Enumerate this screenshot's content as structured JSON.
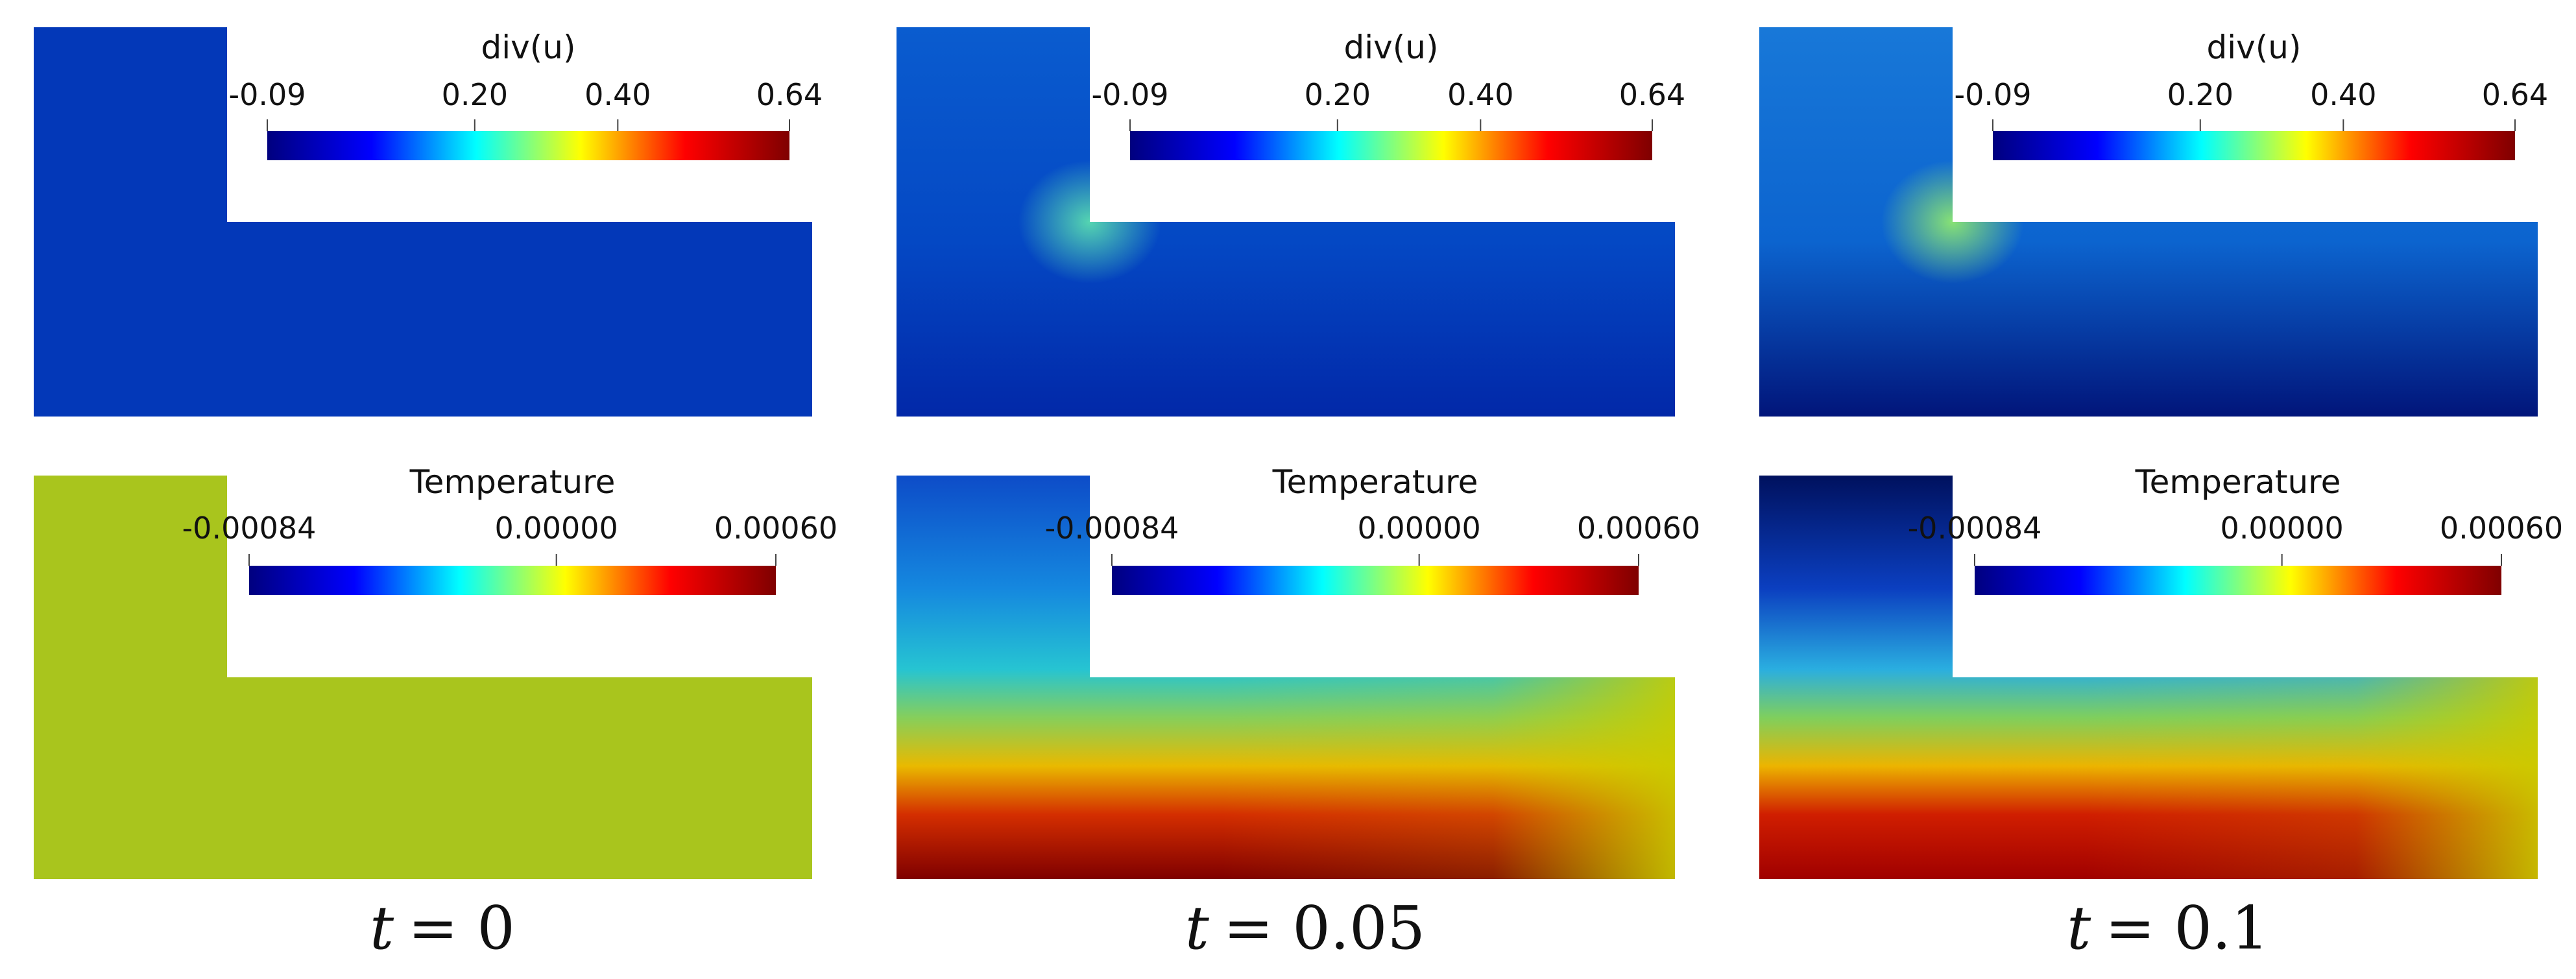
{
  "figure": {
    "colormap": [
      "#00007f",
      "#0000ff",
      "#00ffff",
      "#ffff00",
      "#ff0000",
      "#7f0000"
    ],
    "columns": [
      {
        "time_label": "t = 0",
        "time_var": "t",
        "time_value": "= 0",
        "panels": [
          {
            "field": "div(u)",
            "ticks": [
              "-0.09",
              "0.20",
              "0.40",
              "0.64"
            ],
            "tick_values": [
              -0.09,
              0.2,
              0.4,
              0.64
            ],
            "range": [
              -0.09,
              0.64
            ],
            "fill": "uniform",
            "colors": [
              "#0338b8"
            ]
          },
          {
            "field": "Temperature",
            "ticks": [
              "-0.00084",
              "0.00000",
              "0.00060"
            ],
            "tick_values": [
              -0.00084,
              0.0,
              0.0006
            ],
            "range": [
              -0.00084,
              0.0006
            ],
            "fill": "uniform",
            "colors": [
              "#a9c51d"
            ]
          }
        ]
      },
      {
        "time_label": "t = 0.05",
        "time_var": "t",
        "time_value": "= 0.05",
        "panels": [
          {
            "field": "div(u)",
            "ticks": [
              "-0.09",
              "0.20",
              "0.40",
              "0.64"
            ],
            "tick_values": [
              -0.09,
              0.2,
              0.4,
              0.64
            ],
            "range": [
              -0.09,
              0.64
            ],
            "fill": "divergence",
            "colors": [
              "#0a5ccf",
              "#0448c4",
              "#0228a8",
              "#59dcb0"
            ]
          },
          {
            "field": "Temperature",
            "ticks": [
              "-0.00084",
              "0.00000",
              "0.00060"
            ],
            "tick_values": [
              -0.00084,
              0.0,
              0.0006
            ],
            "range": [
              -0.00084,
              0.0006
            ],
            "fill": "temperature",
            "colors": [
              "#0d4cc8",
              "#1588df",
              "#26c4d2",
              "#86cf5b",
              "#e9b900",
              "#d42e00",
              "#7f0000",
              "#c8cc00"
            ]
          }
        ]
      },
      {
        "time_label": "t = 0.1",
        "time_var": "t",
        "time_value": "= 0.1",
        "panels": [
          {
            "field": "div(u)",
            "ticks": [
              "-0.09",
              "0.20",
              "0.40",
              "0.64"
            ],
            "tick_values": [
              -0.09,
              0.2,
              0.4,
              0.64
            ],
            "range": [
              -0.09,
              0.64
            ],
            "fill": "divergence",
            "colors": [
              "#1878d8",
              "#0c64cf",
              "#01157a",
              "#8ee870"
            ]
          },
          {
            "field": "Temperature",
            "ticks": [
              "-0.00084",
              "0.00000",
              "0.00060"
            ],
            "tick_values": [
              -0.00084,
              0.0,
              0.0006
            ],
            "range": [
              -0.00084,
              0.0006
            ],
            "fill": "temperature",
            "colors": [
              "#00115e",
              "#0b3fc0",
              "#2aaee0",
              "#7fcf5d",
              "#ecb400",
              "#d01e00",
              "#a00000",
              "#c9cb00"
            ]
          }
        ]
      }
    ]
  }
}
